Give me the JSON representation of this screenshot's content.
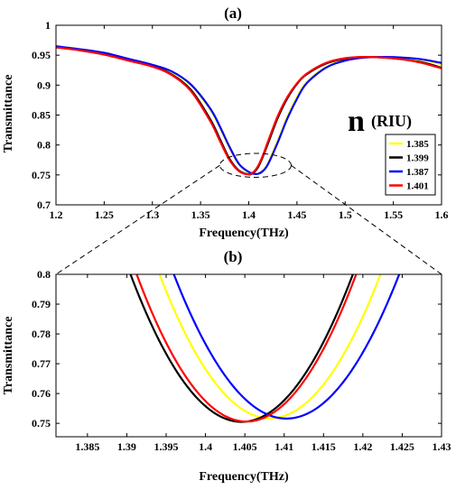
{
  "chart_data": [
    {
      "type": "line",
      "panel_label": "(a)",
      "xlabel": "Frequency(THz)",
      "ylabel": "Transmittance",
      "xlim": [
        1.2,
        1.6
      ],
      "ylim": [
        0.7,
        1.0
      ],
      "xticks": [
        "1.2",
        "1.25",
        "1.3",
        "1.35",
        "1.4",
        "1.45",
        "1.5",
        "1.55",
        "1.6"
      ],
      "yticks": [
        "0.7",
        "0.75",
        "0.8",
        "0.85",
        "0.9",
        "0.95",
        "1"
      ],
      "grid": false,
      "legend": {
        "title": "n",
        "subtitle": "(RIU)",
        "placement": "right",
        "entries": [
          "1.385",
          "1.399",
          "1.387",
          "1.401"
        ]
      },
      "series": [
        {
          "name": "1.385",
          "color": "#ffff00",
          "x": [
            1.2,
            1.225,
            1.25,
            1.275,
            1.3,
            1.32,
            1.34,
            1.36,
            1.37,
            1.38,
            1.39,
            1.4,
            1.405,
            1.41,
            1.415,
            1.42,
            1.43,
            1.44,
            1.45,
            1.46,
            1.48,
            1.5,
            1.52,
            1.54,
            1.56,
            1.58,
            1.6
          ],
          "y": [
            0.964,
            0.959,
            0.953,
            0.943,
            0.933,
            0.922,
            0.9,
            0.859,
            0.829,
            0.795,
            0.767,
            0.754,
            0.752,
            0.752,
            0.758,
            0.77,
            0.807,
            0.847,
            0.88,
            0.905,
            0.93,
            0.942,
            0.946,
            0.947,
            0.945,
            0.942,
            0.935
          ]
        },
        {
          "name": "1.399",
          "color": "#000000",
          "x": [
            1.2,
            1.225,
            1.25,
            1.275,
            1.3,
            1.32,
            1.34,
            1.36,
            1.37,
            1.38,
            1.39,
            1.4,
            1.405,
            1.41,
            1.415,
            1.42,
            1.43,
            1.44,
            1.45,
            1.46,
            1.48,
            1.5,
            1.52,
            1.54,
            1.56,
            1.58,
            1.6
          ],
          "y": [
            0.964,
            0.959,
            0.952,
            0.942,
            0.932,
            0.918,
            0.892,
            0.843,
            0.81,
            0.777,
            0.757,
            0.751,
            0.754,
            0.764,
            0.782,
            0.803,
            0.845,
            0.878,
            0.902,
            0.918,
            0.936,
            0.944,
            0.947,
            0.946,
            0.943,
            0.938,
            0.929
          ]
        },
        {
          "name": "1.387",
          "color": "#0000ff",
          "x": [
            1.2,
            1.225,
            1.25,
            1.275,
            1.3,
            1.32,
            1.34,
            1.36,
            1.37,
            1.38,
            1.39,
            1.4,
            1.405,
            1.41,
            1.415,
            1.42,
            1.43,
            1.44,
            1.45,
            1.46,
            1.48,
            1.5,
            1.52,
            1.54,
            1.56,
            1.58,
            1.6
          ],
          "y": [
            0.965,
            0.96,
            0.954,
            0.944,
            0.934,
            0.923,
            0.901,
            0.861,
            0.831,
            0.797,
            0.768,
            0.755,
            0.752,
            0.752,
            0.757,
            0.768,
            0.804,
            0.844,
            0.877,
            0.903,
            0.929,
            0.941,
            0.946,
            0.947,
            0.946,
            0.943,
            0.937
          ]
        },
        {
          "name": "1.401",
          "color": "#ff0000",
          "x": [
            1.2,
            1.225,
            1.25,
            1.275,
            1.3,
            1.32,
            1.34,
            1.36,
            1.37,
            1.38,
            1.39,
            1.4,
            1.405,
            1.41,
            1.415,
            1.42,
            1.43,
            1.44,
            1.45,
            1.46,
            1.48,
            1.5,
            1.52,
            1.54,
            1.56,
            1.58,
            1.6
          ],
          "y": [
            0.963,
            0.958,
            0.951,
            0.941,
            0.931,
            0.917,
            0.89,
            0.84,
            0.807,
            0.775,
            0.756,
            0.751,
            0.755,
            0.766,
            0.784,
            0.806,
            0.848,
            0.88,
            0.903,
            0.919,
            0.937,
            0.945,
            0.947,
            0.946,
            0.943,
            0.937,
            0.928
          ]
        }
      ],
      "annotation": {
        "type": "ellipse",
        "cx": 1.407,
        "cy": 0.766,
        "rx": 0.037,
        "ry": 0.02
      }
    },
    {
      "type": "line",
      "panel_label": "(b)",
      "xlabel": "Frequency(THz)",
      "ylabel": "Transmittance",
      "xlim": [
        1.381,
        1.43
      ],
      "ylim": [
        0.7455,
        0.8
      ],
      "xticks": [
        "1.385",
        "1.39",
        "1.395",
        "1.4",
        "1.405",
        "1.41",
        "1.415",
        "1.42",
        "1.425",
        "1.43"
      ],
      "yticks": [
        "0.75",
        "0.76",
        "0.77",
        "0.78",
        "0.79",
        "0.8"
      ],
      "grid": false,
      "series": [
        {
          "name": "1.385",
          "color": "#ffff00",
          "min_x": 1.4082,
          "min_y": 0.7517,
          "curvature": 0.000245
        },
        {
          "name": "1.399",
          "color": "#000000",
          "min_x": 1.4046,
          "min_y": 0.7505,
          "curvature": 0.000248
        },
        {
          "name": "1.387",
          "color": "#0000ff",
          "min_x": 1.4103,
          "min_y": 0.7516,
          "curvature": 0.000236
        },
        {
          "name": "1.401",
          "color": "#ff0000",
          "min_x": 1.4052,
          "min_y": 0.7506,
          "curvature": 0.000254
        }
      ]
    }
  ]
}
